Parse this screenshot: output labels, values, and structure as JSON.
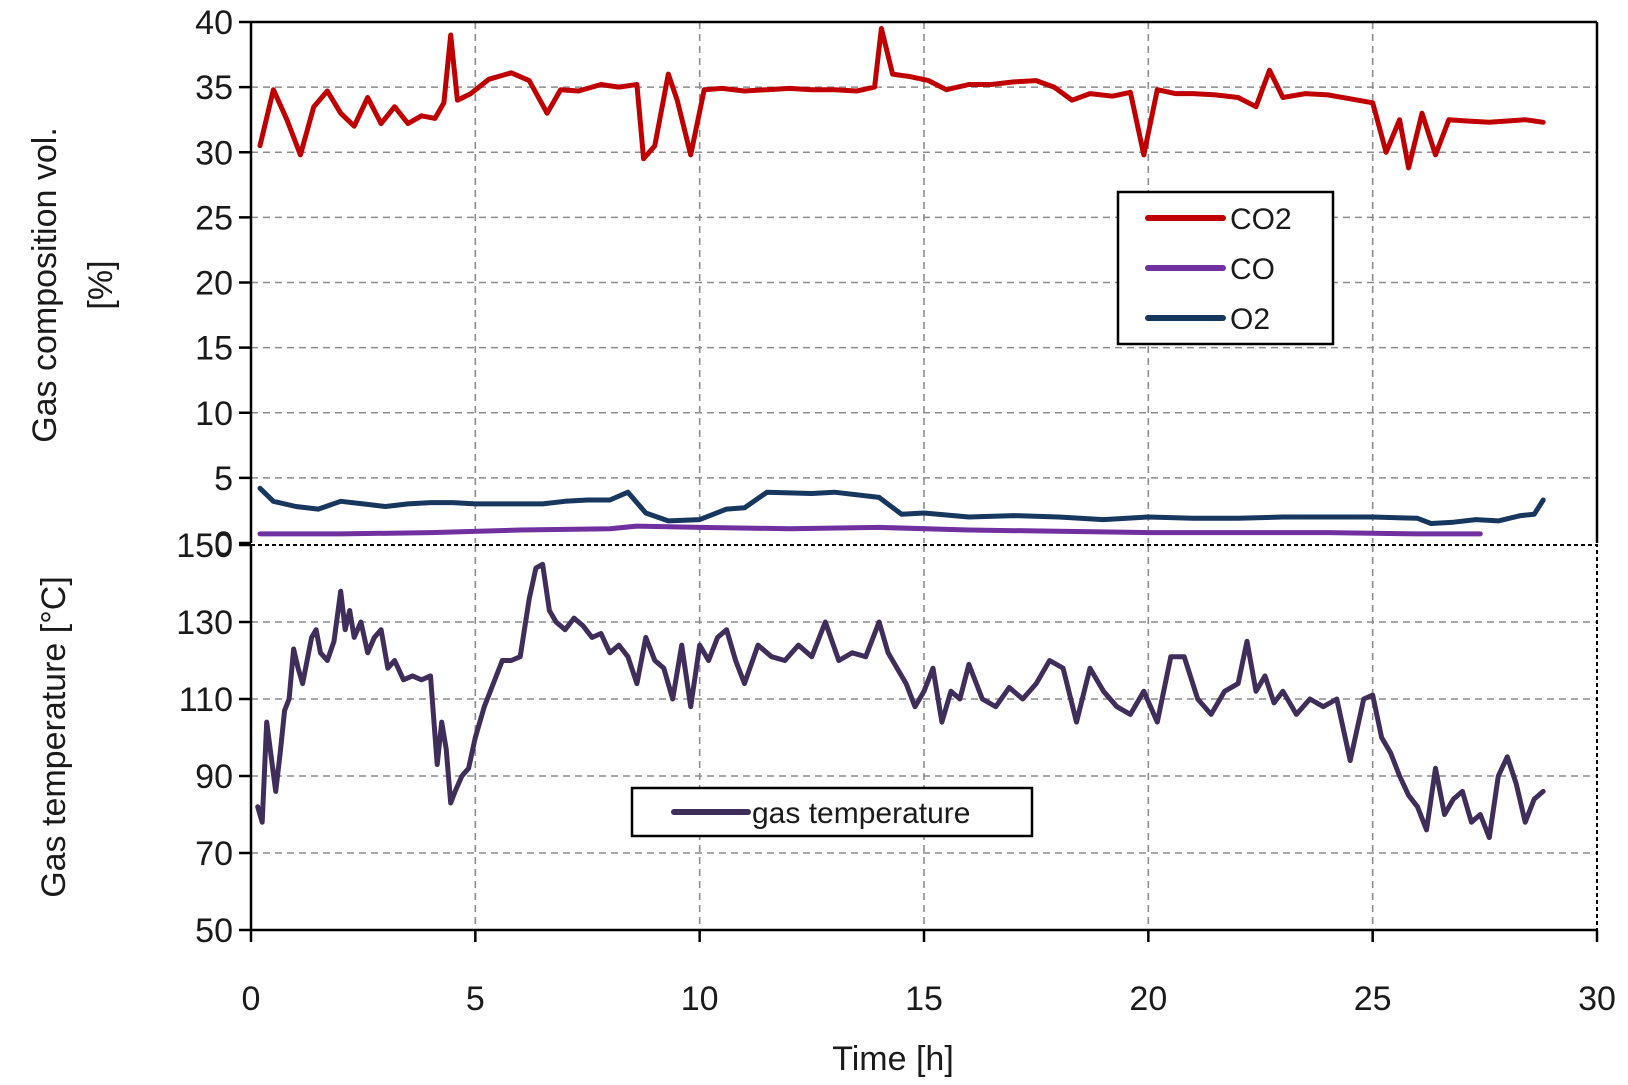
{
  "chart_data": [
    {
      "type": "line",
      "ylabel_lines": [
        "Gas composition vol.",
        "[%]"
      ],
      "ylim": [
        0,
        40
      ],
      "y_ticks": [
        "0",
        "5",
        "10",
        "15",
        "20",
        "25",
        "30",
        "35",
        "40"
      ],
      "xlim": [
        0,
        30
      ],
      "grid": true,
      "legend_position": "center-right",
      "series": [
        {
          "name": "CO2",
          "color": "#c00000",
          "x": [
            0.2,
            0.5,
            0.8,
            1.1,
            1.4,
            1.7,
            2.0,
            2.3,
            2.6,
            2.9,
            3.2,
            3.5,
            3.8,
            4.1,
            4.3,
            4.45,
            4.6,
            4.9,
            5.3,
            5.8,
            6.2,
            6.6,
            6.9,
            7.3,
            7.8,
            8.2,
            8.6,
            8.75,
            9.0,
            9.3,
            9.5,
            9.8,
            10.1,
            10.5,
            11.0,
            11.5,
            12.0,
            12.5,
            13.0,
            13.5,
            13.9,
            14.05,
            14.3,
            14.7,
            15.1,
            15.5,
            16.0,
            16.5,
            17.0,
            17.5,
            17.9,
            18.3,
            18.7,
            19.2,
            19.6,
            19.9,
            20.2,
            20.6,
            21.0,
            21.5,
            22.0,
            22.4,
            22.7,
            23.0,
            23.5,
            24.0,
            24.5,
            25.0,
            25.3,
            25.6,
            25.8,
            26.1,
            26.4,
            26.7,
            27.1,
            27.6,
            28.0,
            28.4,
            28.8
          ],
          "y": [
            30.5,
            34.8,
            32.5,
            29.8,
            33.5,
            34.7,
            33.0,
            32.0,
            34.2,
            32.2,
            33.5,
            32.2,
            32.8,
            32.6,
            33.8,
            39.0,
            34.0,
            34.5,
            35.6,
            36.1,
            35.5,
            33.0,
            34.8,
            34.7,
            35.2,
            35.0,
            35.2,
            29.5,
            30.5,
            36.0,
            34.0,
            29.8,
            34.8,
            34.9,
            34.7,
            34.8,
            34.9,
            34.8,
            34.8,
            34.7,
            35.0,
            39.5,
            36.0,
            35.8,
            35.5,
            34.8,
            35.2,
            35.2,
            35.4,
            35.5,
            35.0,
            34.0,
            34.5,
            34.3,
            34.6,
            29.8,
            34.8,
            34.5,
            34.5,
            34.4,
            34.2,
            33.5,
            36.3,
            34.2,
            34.5,
            34.4,
            34.1,
            33.8,
            30.0,
            32.5,
            28.8,
            33.0,
            29.8,
            32.5,
            32.4,
            32.3,
            32.4,
            32.5,
            32.3
          ]
        },
        {
          "name": "CO",
          "color": "#7030a0",
          "x": [
            0.2,
            2.0,
            4.0,
            6.0,
            8.0,
            8.6,
            10.0,
            12.0,
            14.0,
            16.0,
            18.0,
            20.0,
            22.0,
            24.0,
            26.0,
            27.4
          ],
          "y": [
            0.7,
            0.7,
            0.8,
            1.0,
            1.1,
            1.3,
            1.2,
            1.1,
            1.2,
            1.0,
            0.9,
            0.8,
            0.8,
            0.8,
            0.7,
            0.7
          ]
        },
        {
          "name": "O2",
          "color": "#17375e",
          "x": [
            0.2,
            0.5,
            1.0,
            1.5,
            2.0,
            2.5,
            3.0,
            3.5,
            4.0,
            4.5,
            5.0,
            5.5,
            6.0,
            6.5,
            7.0,
            7.5,
            8.0,
            8.4,
            8.8,
            9.3,
            10.0,
            10.6,
            11.0,
            11.5,
            12.5,
            13.0,
            14.0,
            14.5,
            15.0,
            16.0,
            17.0,
            18.0,
            19.0,
            20.0,
            21.0,
            22.0,
            23.0,
            24.0,
            25.0,
            26.0,
            26.3,
            26.8,
            27.3,
            27.8,
            28.3,
            28.6,
            28.8
          ],
          "y": [
            4.2,
            3.2,
            2.8,
            2.6,
            3.2,
            3.0,
            2.8,
            3.0,
            3.1,
            3.1,
            3.0,
            3.0,
            3.0,
            3.0,
            3.2,
            3.3,
            3.3,
            3.9,
            2.3,
            1.7,
            1.8,
            2.6,
            2.7,
            3.9,
            3.8,
            3.9,
            3.5,
            2.2,
            2.3,
            2.0,
            2.1,
            2.0,
            1.8,
            2.0,
            1.9,
            1.9,
            2.0,
            2.0,
            2.0,
            1.9,
            1.5,
            1.6,
            1.8,
            1.7,
            2.1,
            2.2,
            3.3
          ]
        }
      ]
    },
    {
      "type": "line",
      "ylabel": "Gas temperature [°C]",
      "xlabel": "Time  [h]",
      "ylim": [
        50,
        150
      ],
      "y_ticks": [
        "50",
        "70",
        "90",
        "110",
        "130",
        "150"
      ],
      "xlim": [
        0,
        30
      ],
      "x_ticks": [
        "0",
        "5",
        "10",
        "15",
        "20",
        "25",
        "30"
      ],
      "grid": true,
      "legend_position": "bottom-center",
      "series": [
        {
          "name": "gas temperature",
          "color": "#3f2e5a",
          "x": [
            0.15,
            0.25,
            0.35,
            0.45,
            0.55,
            0.65,
            0.75,
            0.85,
            0.95,
            1.05,
            1.15,
            1.25,
            1.35,
            1.45,
            1.55,
            1.7,
            1.85,
            2.0,
            2.1,
            2.2,
            2.3,
            2.45,
            2.6,
            2.75,
            2.9,
            3.05,
            3.2,
            3.4,
            3.6,
            3.8,
            4.0,
            4.15,
            4.25,
            4.35,
            4.45,
            4.55,
            4.7,
            4.85,
            5.0,
            5.2,
            5.4,
            5.6,
            5.8,
            6.0,
            6.2,
            6.35,
            6.5,
            6.65,
            6.8,
            7.0,
            7.2,
            7.4,
            7.6,
            7.8,
            8.0,
            8.2,
            8.4,
            8.6,
            8.8,
            9.0,
            9.2,
            9.4,
            9.6,
            9.8,
            10.0,
            10.2,
            10.4,
            10.6,
            10.8,
            11.0,
            11.3,
            11.6,
            11.9,
            12.2,
            12.5,
            12.8,
            13.1,
            13.4,
            13.7,
            14.0,
            14.2,
            14.4,
            14.6,
            14.8,
            15.0,
            15.2,
            15.4,
            15.6,
            15.8,
            16.0,
            16.3,
            16.6,
            16.9,
            17.2,
            17.5,
            17.8,
            18.1,
            18.4,
            18.7,
            19.0,
            19.3,
            19.6,
            19.9,
            20.2,
            20.5,
            20.8,
            21.1,
            21.4,
            21.7,
            22.0,
            22.2,
            22.4,
            22.6,
            22.8,
            23.0,
            23.3,
            23.6,
            23.9,
            24.2,
            24.5,
            24.8,
            25.0,
            25.2,
            25.4,
            25.6,
            25.8,
            26.0,
            26.2,
            26.4,
            26.6,
            26.8,
            27.0,
            27.2,
            27.4,
            27.6,
            27.8,
            28.0,
            28.2,
            28.4,
            28.6,
            28.8
          ],
          "y": [
            82,
            78,
            104,
            95,
            86,
            96,
            107,
            110,
            123,
            118,
            114,
            120,
            126,
            128,
            122,
            120,
            125,
            138,
            128,
            133,
            126,
            130,
            122,
            126,
            128,
            118,
            120,
            115,
            116,
            115,
            116,
            93,
            104,
            97,
            83,
            86,
            90,
            92,
            100,
            108,
            114,
            120,
            120,
            121,
            136,
            144,
            145,
            133,
            130,
            128,
            131,
            129,
            126,
            127,
            122,
            124,
            121,
            114,
            126,
            120,
            118,
            110,
            124,
            108,
            124,
            120,
            126,
            128,
            120,
            114,
            124,
            121,
            120,
            124,
            121,
            130,
            120,
            122,
            121,
            130,
            122,
            118,
            114,
            108,
            112,
            118,
            104,
            112,
            110,
            119,
            110,
            108,
            113,
            110,
            114,
            120,
            118,
            104,
            118,
            112,
            108,
            106,
            112,
            104,
            121,
            121,
            110,
            106,
            112,
            114,
            125,
            112,
            116,
            109,
            112,
            106,
            110,
            108,
            110,
            94,
            110,
            111,
            100,
            96,
            90,
            85,
            82,
            76,
            92,
            80,
            84,
            86,
            78,
            80,
            74,
            90,
            95,
            88,
            78,
            84,
            86
          ]
        }
      ]
    }
  ]
}
